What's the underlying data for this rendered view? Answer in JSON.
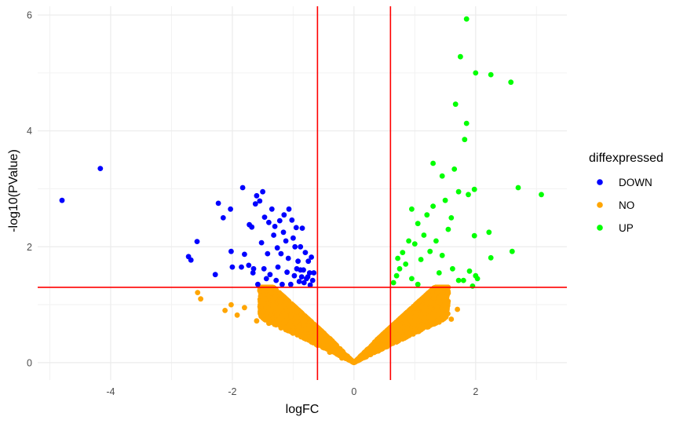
{
  "chart_data": {
    "type": "scatter",
    "xlabel": "logFC",
    "ylabel": "-log10(PValue)",
    "xlim": [
      -5.2,
      3.5
    ],
    "ylim": [
      -0.3,
      6.15
    ],
    "xticks": [
      -4,
      -2,
      0,
      2
    ],
    "yticks": [
      0,
      2,
      4,
      6
    ],
    "grid": true,
    "thresholds": {
      "vertical": [
        -0.6,
        0.6
      ],
      "horizontal": [
        1.3
      ],
      "color": "#ff0000"
    },
    "legend": {
      "title": "diffexpressed",
      "position": "right"
    },
    "series": [
      {
        "name": "DOWN",
        "color": "#0000ff",
        "points": [
          [
            -4.8,
            2.8
          ],
          [
            -4.17,
            3.35
          ],
          [
            -2.72,
            1.83
          ],
          [
            -2.68,
            1.77
          ],
          [
            -2.58,
            2.09
          ],
          [
            -2.28,
            1.52
          ],
          [
            -2.23,
            2.75
          ],
          [
            -2.15,
            2.5
          ],
          [
            -2.03,
            2.65
          ],
          [
            -2.02,
            1.92
          ],
          [
            -2.0,
            1.65
          ],
          [
            -1.83,
            3.02
          ],
          [
            -1.8,
            1.87
          ],
          [
            -1.73,
            1.68
          ],
          [
            -1.72,
            2.38
          ],
          [
            -1.68,
            2.34
          ],
          [
            -1.66,
            1.55
          ],
          [
            -1.62,
            2.74
          ],
          [
            -1.6,
            2.88
          ],
          [
            -1.55,
            2.79
          ],
          [
            -1.52,
            2.07
          ],
          [
            -1.5,
            2.95
          ],
          [
            -1.47,
            2.51
          ],
          [
            -1.44,
            1.45
          ],
          [
            -1.42,
            1.88
          ],
          [
            -1.35,
            2.65
          ],
          [
            -1.32,
            2.2
          ],
          [
            -1.3,
            2.35
          ],
          [
            -1.25,
            1.65
          ],
          [
            -1.22,
            2.45
          ],
          [
            -1.2,
            1.88
          ],
          [
            -1.15,
            2.55
          ],
          [
            -1.12,
            2.1
          ],
          [
            -1.1,
            1.56
          ],
          [
            -1.07,
            2.65
          ],
          [
            -1.04,
            1.35
          ],
          [
            -1.0,
            2.15
          ],
          [
            -0.97,
            2.0
          ],
          [
            -0.95,
            2.33
          ],
          [
            -0.92,
            1.75
          ],
          [
            -0.9,
            1.4
          ],
          [
            -0.88,
            2.0
          ],
          [
            -0.85,
            2.32
          ],
          [
            -0.83,
            1.6
          ],
          [
            -0.8,
            1.9
          ],
          [
            -0.78,
            1.45
          ],
          [
            -0.75,
            1.75
          ],
          [
            -0.73,
            1.55
          ],
          [
            -0.7,
            1.82
          ],
          [
            -0.68,
            1.42
          ],
          [
            -1.85,
            1.65
          ],
          [
            -1.65,
            1.62
          ],
          [
            -1.58,
            1.35
          ],
          [
            -1.48,
            1.62
          ],
          [
            -1.38,
            1.52
          ],
          [
            -1.28,
            1.42
          ],
          [
            -1.18,
            1.35
          ],
          [
            -1.08,
            1.8
          ],
          [
            -0.98,
            1.5
          ],
          [
            -0.88,
            1.6
          ],
          [
            -0.82,
            1.38
          ],
          [
            -0.76,
            1.48
          ],
          [
            -0.72,
            1.34
          ],
          [
            -0.66,
            1.55
          ],
          [
            -1.4,
            2.42
          ],
          [
            -1.16,
            2.25
          ],
          [
            -1.02,
            2.46
          ],
          [
            -1.26,
            1.98
          ],
          [
            -0.94,
            1.62
          ],
          [
            -0.86,
            1.48
          ]
        ]
      },
      {
        "name": "NO",
        "color": "#ffa500",
        "points": [
          [
            -2.57,
            1.21
          ],
          [
            -2.52,
            1.1
          ],
          [
            -2.12,
            0.9
          ],
          [
            -2.02,
            1.0
          ],
          [
            -1.92,
            0.82
          ],
          [
            -1.8,
            0.95
          ],
          [
            -1.6,
            0.72
          ],
          [
            -1.4,
            0.68
          ],
          [
            -1.2,
            0.6
          ],
          [
            -1.0,
            0.55
          ],
          [
            -0.8,
            0.42
          ],
          [
            -0.6,
            0.3
          ],
          [
            -0.4,
            0.18
          ],
          [
            -0.2,
            0.08
          ],
          [
            0.2,
            0.1
          ],
          [
            0.4,
            0.2
          ],
          [
            0.6,
            0.32
          ],
          [
            0.8,
            0.45
          ],
          [
            1.0,
            0.56
          ],
          [
            1.2,
            0.64
          ],
          [
            1.4,
            0.7
          ],
          [
            1.6,
            0.75
          ],
          [
            1.7,
            0.92
          ],
          [
            1.55,
            1.2
          ]
        ]
      },
      {
        "name": "UP",
        "color": "#00ff00",
        "points": [
          [
            1.85,
            5.93
          ],
          [
            1.75,
            5.28
          ],
          [
            2.0,
            5.0
          ],
          [
            2.25,
            4.97
          ],
          [
            2.58,
            4.84
          ],
          [
            1.67,
            4.46
          ],
          [
            1.85,
            4.13
          ],
          [
            1.82,
            3.85
          ],
          [
            1.3,
            3.44
          ],
          [
            1.65,
            3.34
          ],
          [
            1.45,
            3.22
          ],
          [
            2.7,
            3.02
          ],
          [
            3.08,
            2.9
          ],
          [
            1.98,
            2.99
          ],
          [
            1.88,
            2.9
          ],
          [
            1.72,
            2.95
          ],
          [
            0.95,
            2.65
          ],
          [
            1.5,
            2.8
          ],
          [
            2.22,
            2.25
          ],
          [
            1.98,
            2.19
          ],
          [
            2.6,
            1.92
          ],
          [
            2.25,
            1.81
          ],
          [
            1.6,
            2.5
          ],
          [
            2.0,
            1.5
          ],
          [
            2.03,
            1.45
          ],
          [
            1.9,
            1.58
          ],
          [
            1.95,
            1.32
          ],
          [
            1.05,
            2.4
          ],
          [
            1.15,
            2.2
          ],
          [
            1.2,
            2.55
          ],
          [
            0.9,
            2.1
          ],
          [
            0.8,
            1.9
          ],
          [
            0.85,
            1.7
          ],
          [
            0.7,
            1.5
          ],
          [
            0.65,
            1.38
          ],
          [
            1.35,
            2.1
          ],
          [
            1.45,
            1.85
          ],
          [
            1.55,
            2.3
          ],
          [
            1.62,
            1.62
          ],
          [
            1.1,
            1.78
          ],
          [
            1.25,
            1.92
          ],
          [
            0.75,
            1.62
          ],
          [
            0.95,
            1.45
          ],
          [
            1.05,
            1.35
          ],
          [
            1.4,
            1.55
          ],
          [
            1.72,
            1.42
          ],
          [
            1.8,
            1.42
          ],
          [
            0.72,
            1.8
          ],
          [
            1.0,
            2.05
          ],
          [
            1.3,
            2.7
          ]
        ]
      }
    ]
  }
}
